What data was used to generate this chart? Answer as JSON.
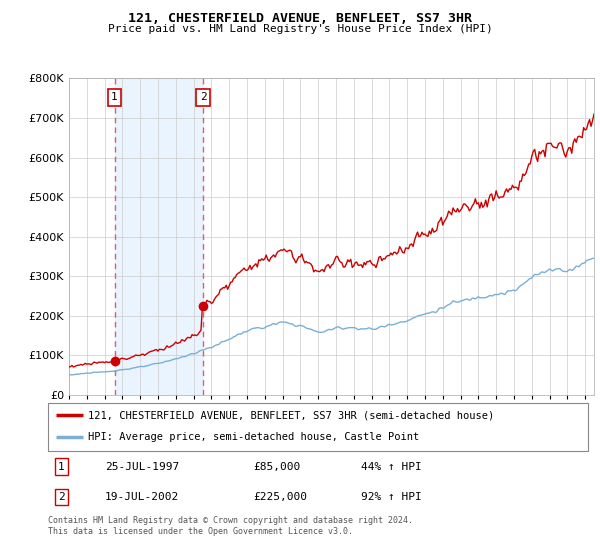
{
  "title": "121, CHESTERFIELD AVENUE, BENFLEET, SS7 3HR",
  "subtitle": "Price paid vs. HM Land Registry's House Price Index (HPI)",
  "legend_line1": "121, CHESTERFIELD AVENUE, BENFLEET, SS7 3HR (semi-detached house)",
  "legend_line2": "HPI: Average price, semi-detached house, Castle Point",
  "footnote": "Contains HM Land Registry data © Crown copyright and database right 2024.\nThis data is licensed under the Open Government Licence v3.0.",
  "table_rows": [
    {
      "num": "1",
      "date": "25-JUL-1997",
      "price": "£85,000",
      "hpi": "44% ↑ HPI"
    },
    {
      "num": "2",
      "date": "19-JUL-2002",
      "price": "£225,000",
      "hpi": "92% ↑ HPI"
    }
  ],
  "purchase1_year": 1997.56,
  "purchase1_price": 85000,
  "purchase2_year": 2002.54,
  "purchase2_price": 225000,
  "red_line_color": "#cc0000",
  "blue_line_color": "#7bafd4",
  "shade_color": "#ddeeff",
  "vline_color": "#e06060",
  "point_color": "#cc0000",
  "ylim": [
    0,
    800000
  ],
  "xlim_start": 1995.0,
  "xlim_end": 2024.5
}
